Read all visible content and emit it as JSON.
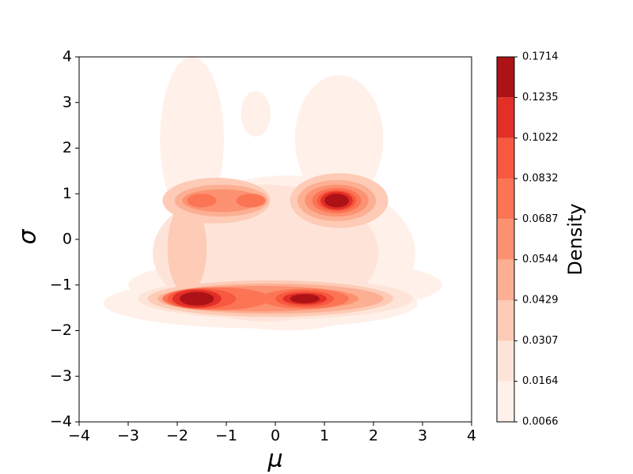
{
  "chart_data": {
    "type": "contourf",
    "xlabel": "μ",
    "ylabel": "σ",
    "colorbar_label": "Density",
    "xlim": [
      -4,
      4
    ],
    "ylim": [
      -4,
      4
    ],
    "xticks": [
      {
        "value": -4,
        "label": "−4"
      },
      {
        "value": -3,
        "label": "−3"
      },
      {
        "value": -2,
        "label": "−2"
      },
      {
        "value": -1,
        "label": "−1"
      },
      0,
      1,
      2,
      3,
      4
    ],
    "yticks": [
      {
        "value": -4,
        "label": "−4"
      },
      {
        "value": -3,
        "label": "−3"
      },
      {
        "value": -2,
        "label": "−2"
      },
      {
        "value": -1,
        "label": "−1"
      },
      0,
      1,
      2,
      3,
      4
    ],
    "levels": [
      0.0066,
      0.0164,
      0.0307,
      0.0429,
      0.0544,
      0.0687,
      0.0832,
      0.1022,
      0.1235,
      0.1714
    ],
    "colors": [
      "#fff0e9",
      "#fee4d8",
      "#fdcbb6",
      "#fcaf93",
      "#fc9272",
      "#fb7555",
      "#f7593f",
      "#e32f27",
      "#ad1217"
    ],
    "regions": [
      {
        "level": 0.0066,
        "x": 0.25,
        "y": -0.3,
        "rx": 2.6,
        "ry": 1.7
      },
      {
        "level": 0.0066,
        "x": -1.7,
        "y": 2.2,
        "rx": 0.65,
        "ry": 1.8
      },
      {
        "level": 0.0066,
        "x": -0.4,
        "y": 2.75,
        "rx": 0.3,
        "ry": 0.5
      },
      {
        "level": 0.0066,
        "x": 1.3,
        "y": 2.2,
        "rx": 0.9,
        "ry": 1.4
      },
      {
        "level": 0.0066,
        "x": -0.3,
        "y": -1.4,
        "rx": 3.2,
        "ry": 0.55
      },
      {
        "level": 0.0066,
        "x": 0.2,
        "y": -1.0,
        "rx": 3.2,
        "ry": 0.6
      },
      {
        "level": 0.0164,
        "x": -0.2,
        "y": -0.3,
        "rx": 2.3,
        "ry": 1.5
      },
      {
        "level": 0.0164,
        "x": 0,
        "y": -1.3,
        "rx": 2.8,
        "ry": 0.45
      },
      {
        "level": 0.0307,
        "x": -1.2,
        "y": 0.85,
        "rx": 1.1,
        "ry": 0.5
      },
      {
        "level": 0.0307,
        "x": 1.3,
        "y": 0.85,
        "rx": 1.0,
        "ry": 0.6
      },
      {
        "level": 0.0307,
        "x": -0.1,
        "y": -1.3,
        "rx": 2.5,
        "ry": 0.4
      },
      {
        "level": 0.0307,
        "x": -1.8,
        "y": -0.2,
        "rx": 0.4,
        "ry": 1.0
      },
      {
        "level": 0.0429,
        "x": -1.1,
        "y": 0.85,
        "rx": 0.95,
        "ry": 0.35
      },
      {
        "level": 0.0429,
        "x": 1.25,
        "y": 0.85,
        "rx": 0.8,
        "ry": 0.45
      },
      {
        "level": 0.0429,
        "x": -0.1,
        "y": -1.3,
        "rx": 2.3,
        "ry": 0.33
      },
      {
        "level": 0.0544,
        "x": -1.1,
        "y": 0.85,
        "rx": 0.8,
        "ry": 0.25
      },
      {
        "level": 0.0544,
        "x": 1.25,
        "y": 0.85,
        "rx": 0.65,
        "ry": 0.35
      },
      {
        "level": 0.0544,
        "x": -0.3,
        "y": -1.3,
        "rx": 2.0,
        "ry": 0.28
      },
      {
        "level": 0.0687,
        "x": -1.5,
        "y": 0.85,
        "rx": 0.3,
        "ry": 0.15
      },
      {
        "level": 0.0687,
        "x": -0.5,
        "y": 0.85,
        "rx": 0.3,
        "ry": 0.15
      },
      {
        "level": 0.0687,
        "x": 1.25,
        "y": 0.85,
        "rx": 0.5,
        "ry": 0.28
      },
      {
        "level": 0.0687,
        "x": -1.2,
        "y": -1.3,
        "rx": 1.1,
        "ry": 0.25
      },
      {
        "level": 0.0687,
        "x": 0.6,
        "y": -1.3,
        "rx": 0.9,
        "ry": 0.22
      },
      {
        "level": 0.0832,
        "x": 1.25,
        "y": 0.85,
        "rx": 0.4,
        "ry": 0.23
      },
      {
        "level": 0.0832,
        "x": -1.5,
        "y": -1.3,
        "rx": 0.7,
        "ry": 0.22
      },
      {
        "level": 0.0832,
        "x": 0.6,
        "y": -1.3,
        "rx": 0.6,
        "ry": 0.18
      },
      {
        "level": 0.1022,
        "x": 1.25,
        "y": 0.85,
        "rx": 0.33,
        "ry": 0.2
      },
      {
        "level": 0.1022,
        "x": -1.6,
        "y": -1.3,
        "rx": 0.5,
        "ry": 0.2
      },
      {
        "level": 0.1022,
        "x": 0.6,
        "y": -1.3,
        "rx": 0.45,
        "ry": 0.13
      },
      {
        "level": 0.1235,
        "x": 1.25,
        "y": 0.85,
        "rx": 0.25,
        "ry": 0.15
      },
      {
        "level": 0.1235,
        "x": -1.6,
        "y": -1.3,
        "rx": 0.35,
        "ry": 0.15
      },
      {
        "level": 0.1235,
        "x": 0.6,
        "y": -1.3,
        "rx": 0.3,
        "ry": 0.1
      }
    ]
  }
}
